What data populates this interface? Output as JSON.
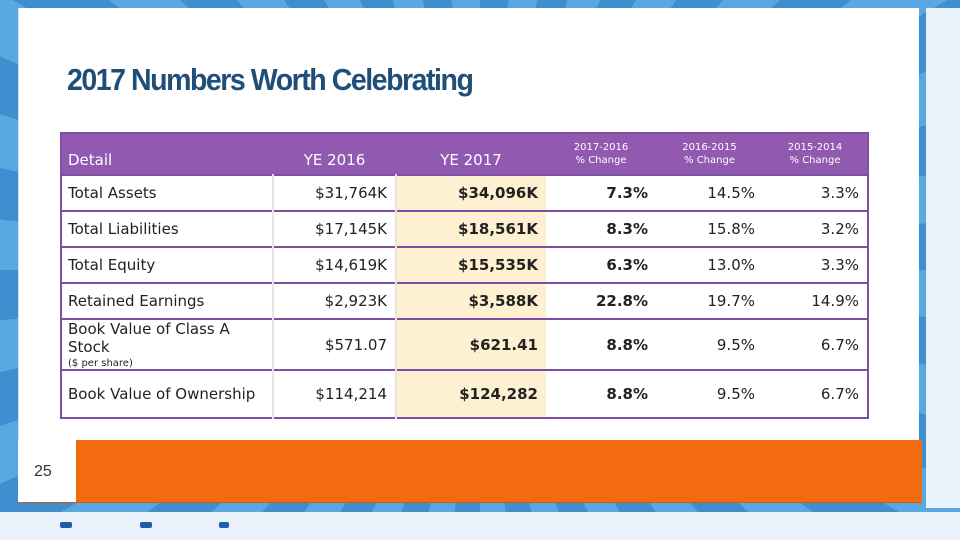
{
  "slide": {
    "title": "2017 Numbers Worth Celebrating",
    "page_number": "25"
  },
  "table": {
    "headers": {
      "detail": "Detail",
      "ye2016": "YE 2016",
      "ye2017": "YE 2017",
      "chg_2017_2016_l1": "2017-2016",
      "chg_2017_2016_l2": "% Change",
      "chg_2016_2015_l1": "2016-2015",
      "chg_2016_2015_l2": "% Change",
      "chg_2015_2014_l1": "2015-2014",
      "chg_2015_2014_l2": "% Change"
    },
    "rows": [
      {
        "label": "Total Assets",
        "sub": "",
        "ye2016": "$31,764K",
        "ye2017": "$34,096K",
        "c1": "7.3%",
        "c2": "14.5%",
        "c3": "3.3%"
      },
      {
        "label": "Total Liabilities",
        "sub": "",
        "ye2016": "$17,145K",
        "ye2017": "$18,561K",
        "c1": "8.3%",
        "c2": "15.8%",
        "c3": "3.2%"
      },
      {
        "label": "Total Equity",
        "sub": "",
        "ye2016": "$14,619K",
        "ye2017": "$15,535K",
        "c1": "6.3%",
        "c2": "13.0%",
        "c3": "3.3%"
      },
      {
        "label": "Retained Earnings",
        "sub": "",
        "ye2016": "$2,923K",
        "ye2017": "$3,588K",
        "c1": "22.8%",
        "c2": "19.7%",
        "c3": "14.9%"
      },
      {
        "label": "Book Value of Class A Stock",
        "sub": "($ per share)",
        "ye2016": "$571.07",
        "ye2017": "$621.41",
        "c1": "8.8%",
        "c2": "9.5%",
        "c3": "6.7%"
      },
      {
        "label": "Book Value of Ownership",
        "sub": "",
        "ye2016": "$114,214",
        "ye2017": "$124,282",
        "c1": "8.8%",
        "c2": "9.5%",
        "c3": "6.7%"
      }
    ]
  },
  "colors": {
    "header_bg": "#9259b0",
    "highlight_col": "#fdf1d2",
    "footer_bar": "#f26b0f",
    "title": "#1f4e79"
  }
}
